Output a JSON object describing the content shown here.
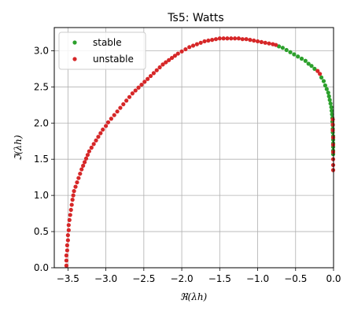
{
  "chart_data": {
    "type": "scatter",
    "title": "Ts5: Watts",
    "xlabel": "ℜ(λh)",
    "ylabel": "ℑ(λh)",
    "xlim": [
      -3.68,
      0.0
    ],
    "ylim": [
      0.0,
      3.32
    ],
    "xticks": [
      -3.5,
      -3.0,
      -2.5,
      -2.0,
      -1.5,
      -1.0,
      -0.5,
      0.0
    ],
    "yticks": [
      0.0,
      0.5,
      1.0,
      1.5,
      2.0,
      2.5,
      3.0
    ],
    "xtick_labels": [
      "−3.5",
      "−3.0",
      "−2.5",
      "−2.0",
      "−1.5",
      "−1.0",
      "−0.5",
      "0.0"
    ],
    "ytick_labels": [
      "0.0",
      "0.5",
      "1.0",
      "1.5",
      "2.0",
      "2.5",
      "3.0"
    ],
    "grid": true,
    "legend_position": "upper-left",
    "colors": {
      "stable": "#2ca02c",
      "unstable": "#d62728"
    },
    "series": [
      {
        "name": "stable",
        "color": "#2ca02c",
        "x": [
          -0.72,
          -0.67,
          -0.62,
          -0.57,
          -0.52,
          -0.47,
          -0.42,
          -0.37,
          -0.33,
          -0.29,
          -0.25,
          -0.16,
          -0.13,
          -0.11,
          -0.09,
          -0.07,
          -0.06,
          -0.05,
          -0.04,
          -0.03,
          -0.025,
          -0.02,
          -0.015,
          -0.015,
          -0.01,
          -0.01,
          -0.01,
          -0.005,
          -0.005,
          -0.005,
          -0.005,
          -0.005,
          -0.005
        ],
        "y": [
          3.06,
          3.04,
          3.01,
          2.98,
          2.95,
          2.92,
          2.89,
          2.86,
          2.82,
          2.79,
          2.75,
          2.63,
          2.58,
          2.52,
          2.47,
          2.42,
          2.37,
          2.32,
          2.27,
          2.22,
          2.17,
          2.12,
          2.07,
          2.02,
          1.97,
          1.92,
          1.87,
          1.82,
          1.77,
          1.72,
          1.67,
          1.62,
          1.57
        ]
      },
      {
        "name": "unstable",
        "color": "#d62728",
        "x": [
          -3.52,
          -3.52,
          -3.52,
          -3.51,
          -3.51,
          -3.5,
          -3.5,
          -3.49,
          -3.49,
          -3.48,
          -3.47,
          -3.46,
          -3.45,
          -3.44,
          -3.43,
          -3.42,
          -3.4,
          -3.38,
          -3.36,
          -3.34,
          -3.32,
          -3.3,
          -3.28,
          -3.26,
          -3.24,
          -3.22,
          -3.19,
          -3.16,
          -3.13,
          -3.1,
          -3.07,
          -3.04,
          -3.0,
          -2.97,
          -2.93,
          -2.89,
          -2.85,
          -2.81,
          -2.77,
          -2.73,
          -2.69,
          -2.65,
          -2.61,
          -2.57,
          -2.53,
          -2.49,
          -2.45,
          -2.41,
          -2.37,
          -2.33,
          -2.29,
          -2.25,
          -2.21,
          -2.17,
          -2.13,
          -2.09,
          -2.05,
          -2.0,
          -1.95,
          -1.9,
          -1.85,
          -1.8,
          -1.75,
          -1.7,
          -1.65,
          -1.6,
          -1.55,
          -1.5,
          -1.45,
          -1.4,
          -1.35,
          -1.3,
          -1.25,
          -1.2,
          -1.15,
          -1.1,
          -1.05,
          -1.0,
          -0.95,
          -0.9,
          -0.85,
          -0.8,
          -0.76,
          -0.21,
          -0.18,
          -0.01,
          -0.01,
          -0.01,
          -0.005,
          -0.005,
          -0.005,
          -0.005,
          -0.005,
          -0.005
        ],
        "y": [
          0.03,
          0.1,
          0.17,
          0.24,
          0.31,
          0.38,
          0.45,
          0.52,
          0.59,
          0.66,
          0.73,
          0.8,
          0.87,
          0.94,
          1.0,
          1.06,
          1.12,
          1.18,
          1.24,
          1.3,
          1.36,
          1.41,
          1.46,
          1.51,
          1.56,
          1.61,
          1.66,
          1.71,
          1.76,
          1.81,
          1.86,
          1.91,
          1.96,
          2.01,
          2.06,
          2.11,
          2.16,
          2.21,
          2.26,
          2.31,
          2.36,
          2.41,
          2.45,
          2.49,
          2.53,
          2.57,
          2.61,
          2.65,
          2.69,
          2.73,
          2.77,
          2.81,
          2.84,
          2.87,
          2.9,
          2.93,
          2.96,
          2.99,
          3.02,
          3.05,
          3.07,
          3.09,
          3.11,
          3.13,
          3.14,
          3.15,
          3.16,
          3.17,
          3.17,
          3.17,
          3.17,
          3.17,
          3.17,
          3.16,
          3.16,
          3.15,
          3.14,
          3.13,
          3.12,
          3.11,
          3.1,
          3.09,
          3.08,
          2.72,
          2.68,
          2.05,
          1.98,
          1.9,
          1.8,
          1.7,
          1.6,
          1.5,
          1.42,
          1.35
        ]
      }
    ]
  }
}
